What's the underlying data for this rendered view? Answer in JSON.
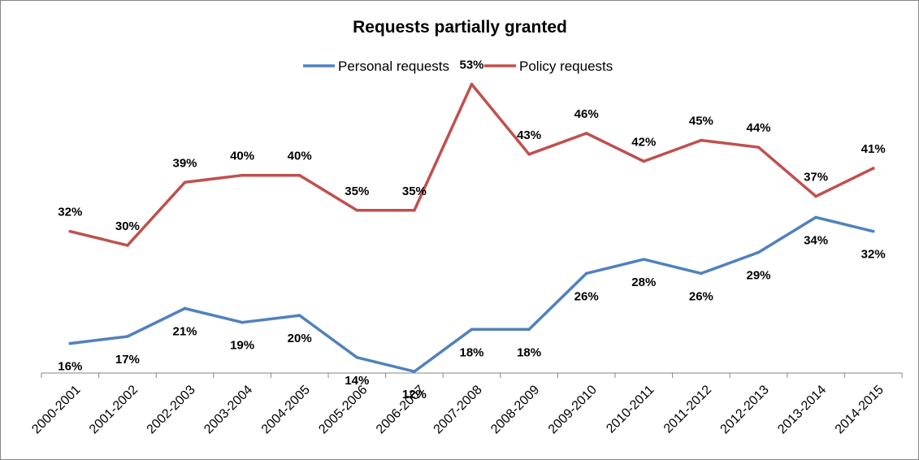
{
  "chart_data": {
    "type": "line",
    "title": "Requests partially granted",
    "categories": [
      "2000-2001",
      "2001-2002",
      "2002-2003",
      "2003-2004",
      "2004-2005",
      "2005-2006",
      "2006-2007",
      "2007-2008",
      "2008-2009",
      "2009-2010",
      "2010-2011",
      "2011-2012",
      "2012-2013",
      "2013-2014",
      "2014-2015"
    ],
    "series": [
      {
        "name": "Personal requests",
        "color": "#4f81bd",
        "values": [
          16,
          17,
          21,
          19,
          20,
          14,
          12,
          18,
          18,
          26,
          28,
          26,
          29,
          34,
          32
        ],
        "labels": [
          "16%",
          "17%",
          "21%",
          "19%",
          "20%",
          "14%",
          "12%",
          "18%",
          "18%",
          "26%",
          "28%",
          "26%",
          "29%",
          "34%",
          "32%"
        ],
        "label_position": "below"
      },
      {
        "name": "Policy requests",
        "color": "#c0504d",
        "values": [
          32,
          30,
          39,
          40,
          40,
          35,
          35,
          53,
          43,
          46,
          42,
          45,
          44,
          37,
          41
        ],
        "labels": [
          "32%",
          "30%",
          "39%",
          "40%",
          "40%",
          "35%",
          "35%",
          "53%",
          "43%",
          "46%",
          "42%",
          "45%",
          "44%",
          "37%",
          "41%"
        ],
        "label_position": "above"
      }
    ],
    "xlabel": "",
    "ylabel": "",
    "grid": false,
    "legend_position": "top"
  }
}
